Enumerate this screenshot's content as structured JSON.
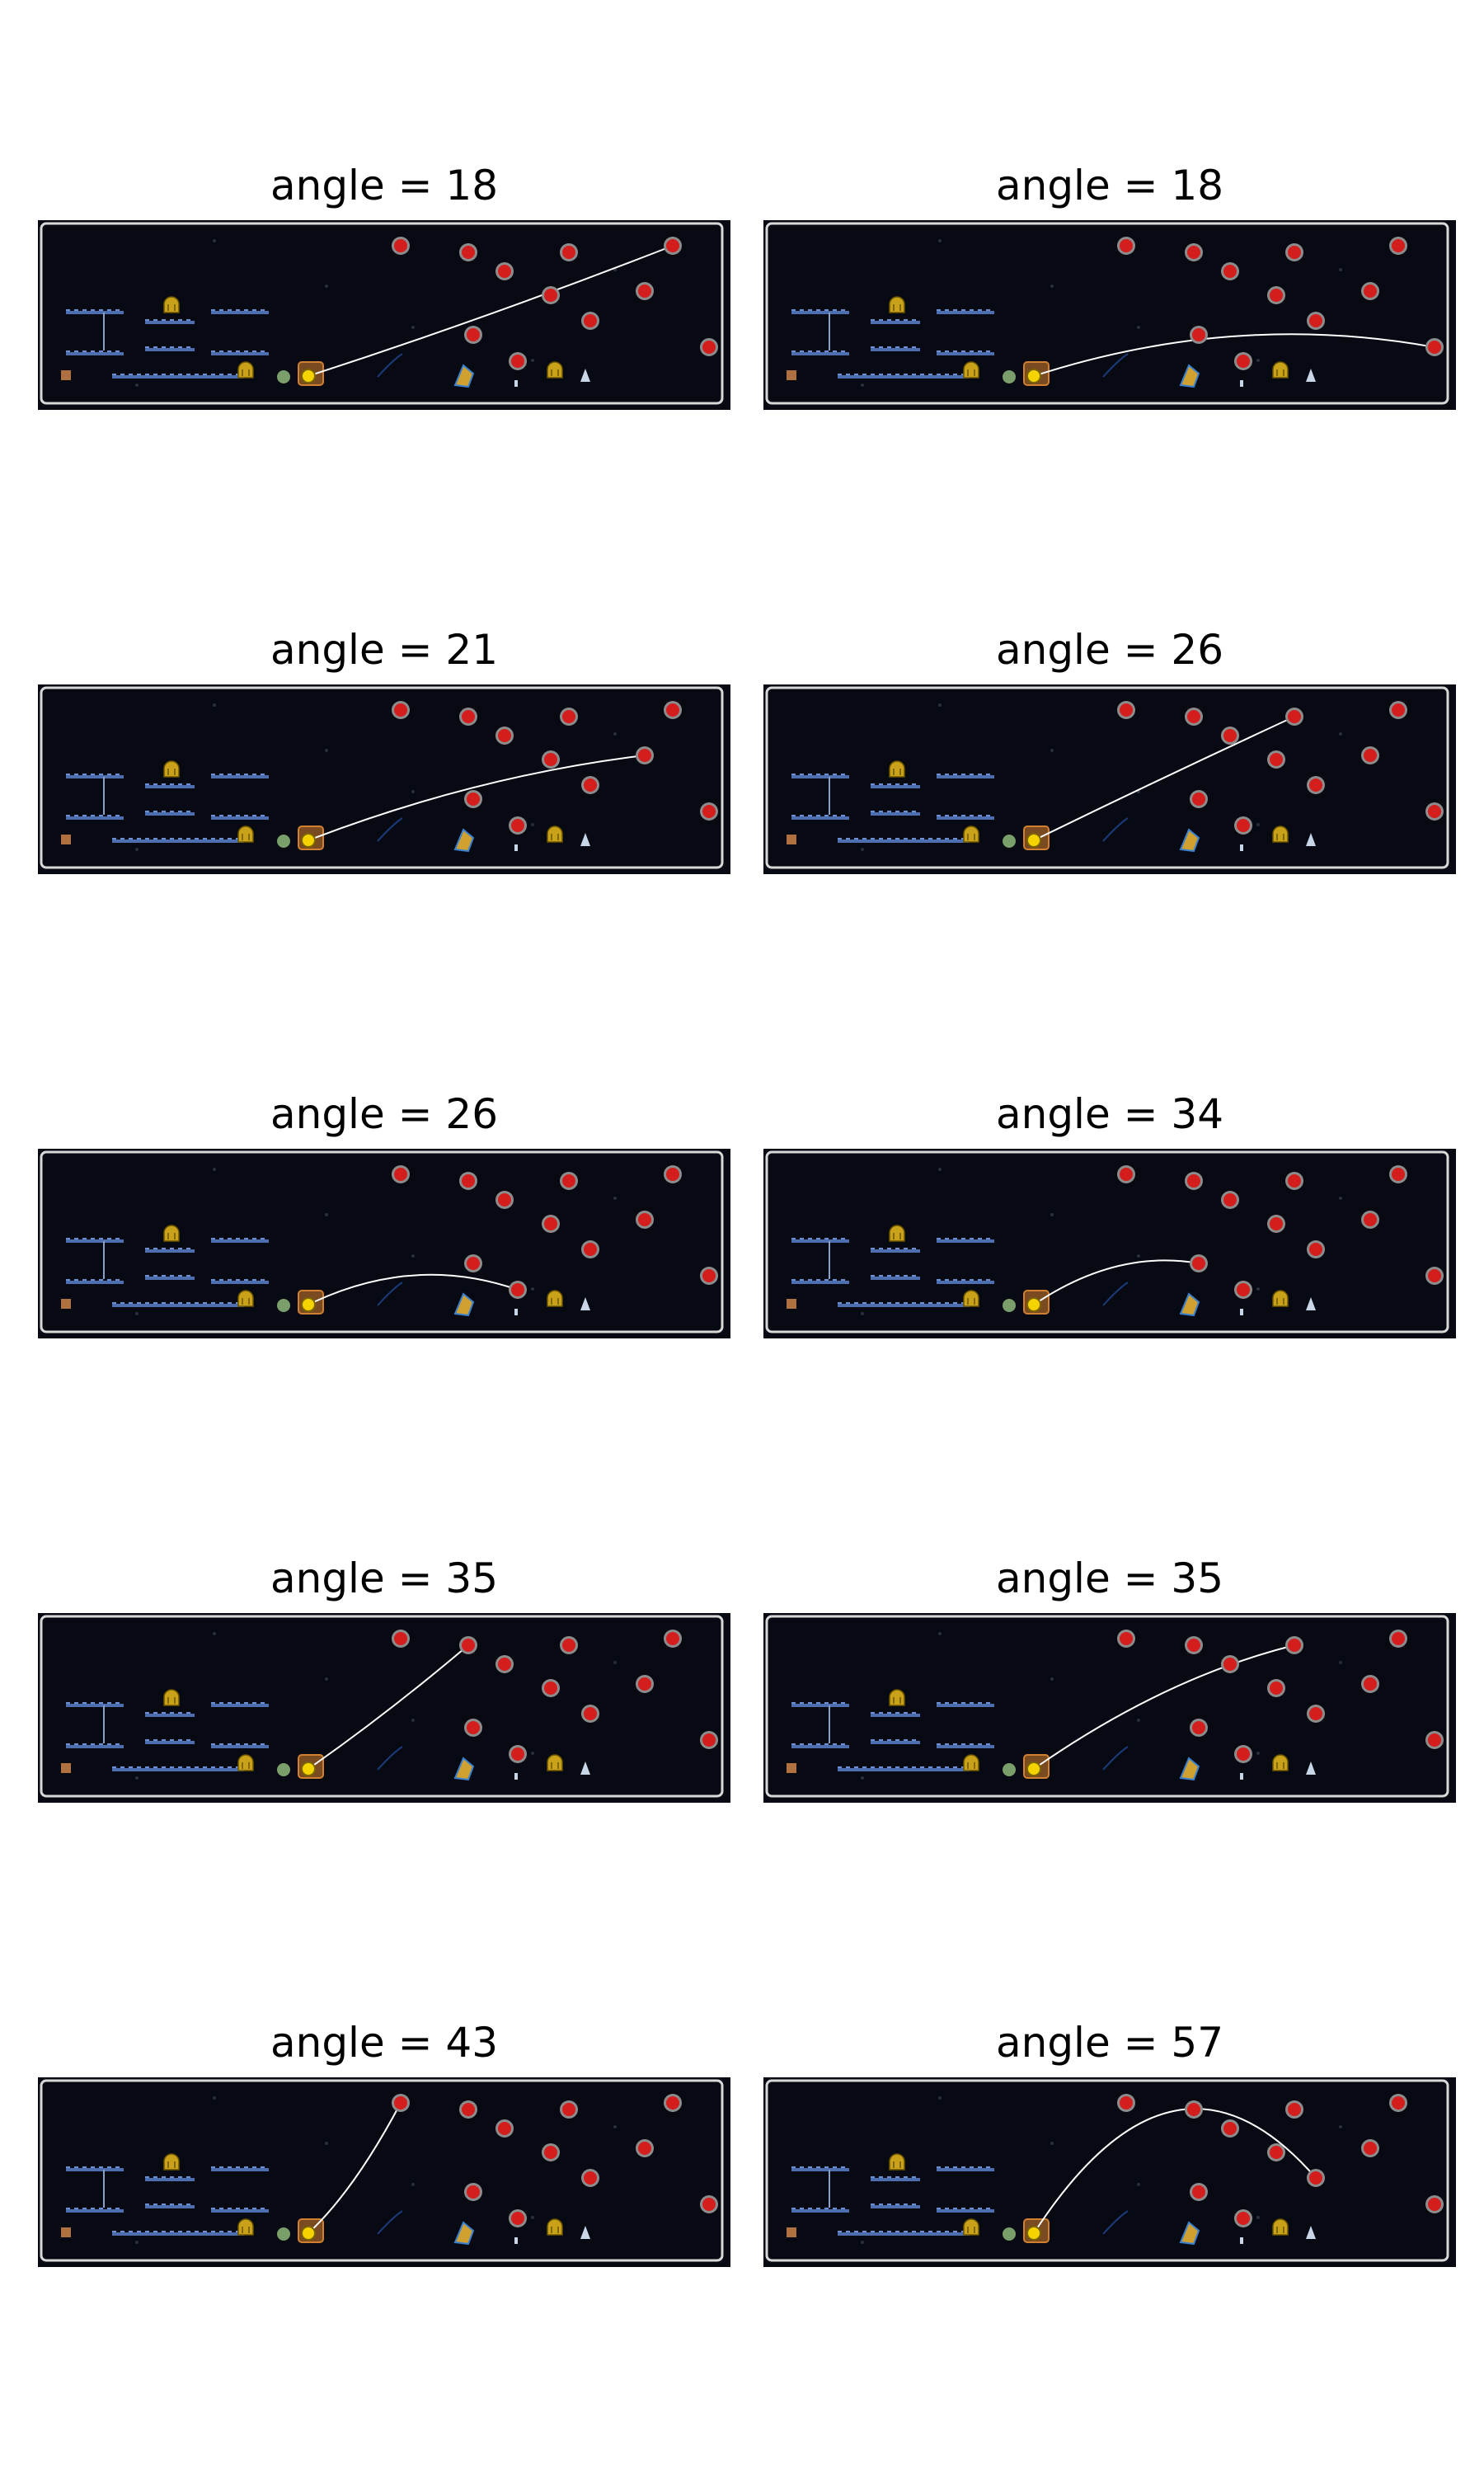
{
  "colors": {
    "sky": "#070a12",
    "border": "#d8d8d8",
    "target": "#d41d1d",
    "target_ring": "#8c8c8c",
    "trajectory": "#ffffff",
    "launcher": "#f5d300",
    "platform": "#4d6fb0"
  },
  "panels": [
    {
      "title": "angle = 18",
      "angle": 18,
      "hit_target": 4
    },
    {
      "title": "angle = 18",
      "angle": 18,
      "hit_target": 10
    },
    {
      "title": "angle = 21",
      "angle": 21,
      "hit_target": 6
    },
    {
      "title": "angle = 26",
      "angle": 26,
      "hit_target": 3
    },
    {
      "title": "angle = 26",
      "angle": 26,
      "hit_target": 9
    },
    {
      "title": "angle = 34",
      "angle": 34,
      "hit_target": 8
    },
    {
      "title": "angle = 35",
      "angle": 35,
      "hit_target": 1
    },
    {
      "title": "angle = 35",
      "angle": 35,
      "hit_target": 3
    },
    {
      "title": "angle = 43",
      "angle": 43,
      "hit_target": 0
    },
    {
      "title": "angle = 57",
      "angle": 57,
      "hit_target": 7
    }
  ],
  "icons": [
    "launcher-icon",
    "trophy-icon",
    "lock-icon",
    "lamp-post-icon",
    "ladder-icon",
    "gear-icon",
    "target-icon"
  ]
}
